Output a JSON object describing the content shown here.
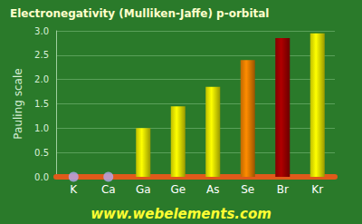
{
  "chart_data": {
    "type": "bar",
    "title": "Electronegativity (Mulliken-Jaffe) p-orbital",
    "y_label": "Pauling scale",
    "annotation": "www.webelements.com",
    "categories": [
      "K",
      "Ca",
      "Ga",
      "Ge",
      "As",
      "Se",
      "Br",
      "Kr"
    ],
    "values": [
      null,
      null,
      1.0,
      1.45,
      1.85,
      2.4,
      2.85,
      2.95
    ],
    "colors": [
      "#b4a8f0",
      "#b4a8f0",
      "#ffff00",
      "#ffff00",
      "#ffff00",
      "#ff8c00",
      "#b00000",
      "#ffff00"
    ],
    "ylim": [
      0,
      3
    ],
    "yticks": [
      {
        "value": 0,
        "label": "0.0"
      },
      0.5,
      {
        "value": 1,
        "label": "1.0"
      },
      1.5,
      {
        "value": 2,
        "label": "2.0"
      },
      2.5,
      {
        "value": 3,
        "label": "3.0"
      }
    ],
    "grid": true
  }
}
